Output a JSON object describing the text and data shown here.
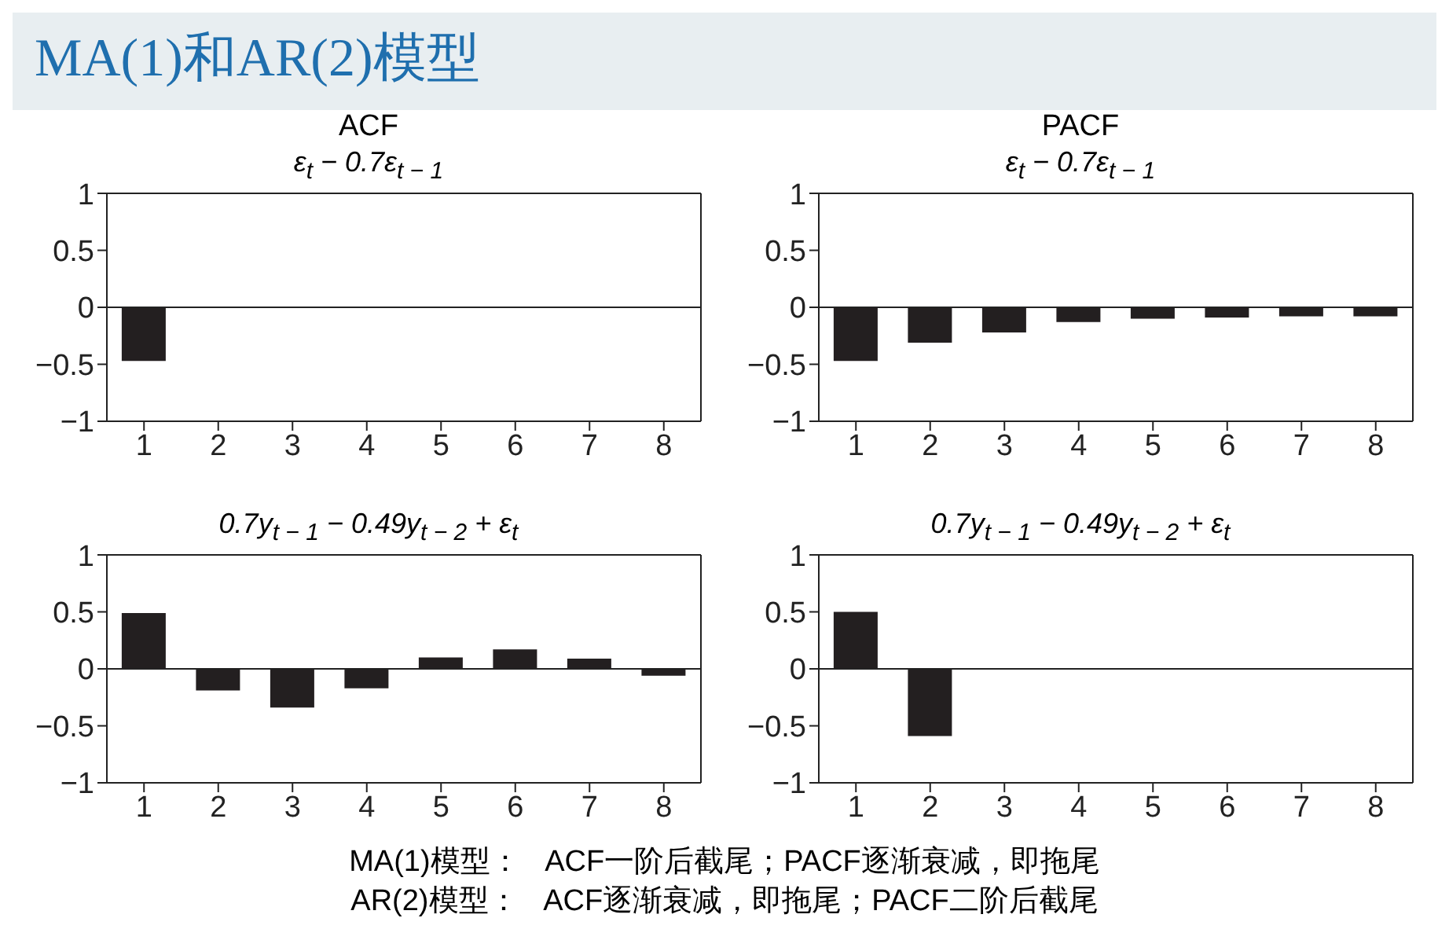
{
  "chart_data": [
    {
      "type": "other",
      "title": "MA(1)和AR(2)模型"
    },
    {
      "type": "bar",
      "title": "ACF",
      "subtitle": "ε$_{t}$ − 0.7ε$_{t − 1}$",
      "categories": [
        "1",
        "2",
        "3",
        "4",
        "5",
        "6",
        "7",
        "8"
      ],
      "values": [
        -0.47,
        0,
        0,
        0,
        0,
        0,
        0,
        0
      ],
      "color": "#231f20",
      "ylim": [
        -1,
        1
      ],
      "yticks": [
        -1,
        -0.5,
        0,
        0.5,
        1
      ]
    },
    {
      "type": "bar",
      "title": "PACF",
      "subtitle": "ε$_{t}$ − 0.7ε$_{t − 1}$",
      "categories": [
        "1",
        "2",
        "3",
        "4",
        "5",
        "6",
        "7",
        "8"
      ],
      "values": [
        -0.47,
        -0.31,
        -0.22,
        -0.13,
        -0.1,
        -0.09,
        -0.08,
        -0.08
      ],
      "color": "#231f20",
      "ylim": [
        -1,
        1
      ],
      "yticks": [
        -1,
        -0.5,
        0,
        0.5,
        1
      ]
    },
    {
      "type": "bar",
      "subtitle": "0.7y$_{t − 1}$ − 0.49y$_{t − 2}$ + ε$_{t}$",
      "categories": [
        "1",
        "2",
        "3",
        "4",
        "5",
        "6",
        "7",
        "8"
      ],
      "values": [
        0.49,
        -0.19,
        -0.34,
        -0.17,
        0.1,
        0.17,
        0.09,
        -0.06
      ],
      "color": "#231f20",
      "ylim": [
        -1,
        1
      ],
      "yticks": [
        -1,
        -0.5,
        0,
        0.5,
        1
      ]
    },
    {
      "type": "bar",
      "subtitle": "0.7y$_{t − 1}$ − 0.49y$_{t − 2}$ + ε$_{t}$",
      "categories": [
        "1",
        "2",
        "3",
        "4",
        "5",
        "6",
        "7",
        "8"
      ],
      "values": [
        0.5,
        -0.59,
        0,
        0,
        0,
        0,
        0,
        0
      ],
      "color": "#231f20",
      "ylim": [
        -1,
        1
      ],
      "yticks": [
        -1,
        -0.5,
        0,
        0.5,
        1
      ]
    },
    {
      "type": "other",
      "annotations": [
        "MA(1)模型：   ACF一阶后截尾；PACF逐渐衰减，即拖尾",
        "AR(2)模型：   ACF逐渐衰减，即拖尾；PACF二阶后截尾"
      ]
    }
  ]
}
